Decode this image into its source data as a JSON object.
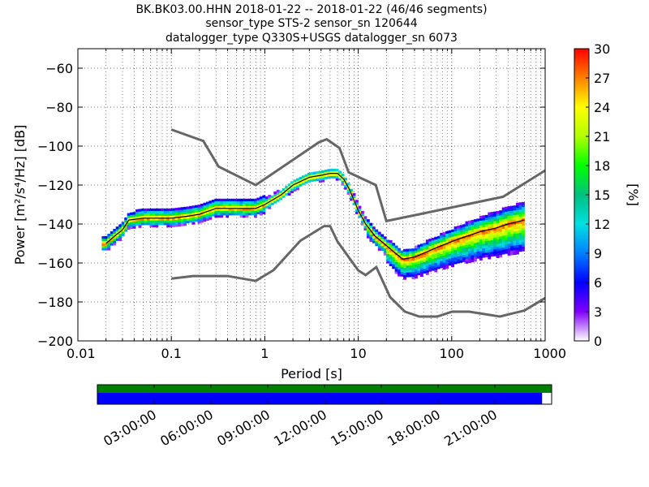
{
  "chart_data": {
    "type": "heatmap",
    "title_lines": [
      "BK.BK03.00.HHN   2018-01-22 -- 2018-01-22  (46/46 segments)",
      "sensor_type STS-2 sensor_sn 120644",
      "datalogger_type Q330S+USGS datalogger_sn 6073"
    ],
    "xlabel": "Period [s]",
    "ylabel": "Power [m²/s⁴/Hz] [dB]",
    "x_scale": "log",
    "xlim": [
      0.01,
      1000
    ],
    "ylim": [
      -200,
      -50
    ],
    "x_ticks": [
      {
        "value": 0.01,
        "label": "0.01"
      },
      {
        "value": 0.1,
        "label": "0.1"
      },
      {
        "value": 1,
        "label": "1"
      },
      {
        "value": 10,
        "label": "10"
      },
      {
        "value": 100,
        "label": "100"
      },
      {
        "value": 1000,
        "label": "1000"
      }
    ],
    "y_ticks": [
      -200,
      -180,
      -160,
      -140,
      -120,
      -100,
      -80,
      -60
    ],
    "grid": true,
    "colorbar": {
      "label": "[%]",
      "range": [
        0,
        30
      ],
      "ticks": [
        0,
        3,
        6,
        9,
        12,
        15,
        18,
        21,
        24,
        27,
        30
      ],
      "colormap": "pqlx"
    },
    "noise_models": [
      {
        "id": "high-noise-model",
        "x": [
          0.1,
          0.22,
          0.32,
          0.8,
          3.8,
          4.6,
          6.3,
          7.9,
          15.4,
          20,
          354.8,
          1000
        ],
        "y": [
          -91.5,
          -97.4,
          -110.5,
          -120.0,
          -98.0,
          -96.5,
          -101.0,
          -113.5,
          -120.0,
          -138.5,
          -126.0,
          -112.5
        ]
      },
      {
        "id": "low-noise-model",
        "x": [
          0.1,
          0.17,
          0.4,
          0.8,
          1.24,
          2.4,
          4.3,
          5.0,
          6.0,
          10.0,
          12.0,
          15.6,
          21.9,
          31.6,
          45,
          70,
          101,
          154,
          328,
          600,
          1000
        ],
        "y": [
          -168.0,
          -166.7,
          -166.7,
          -169.2,
          -163.7,
          -148.6,
          -141.1,
          -141.1,
          -149.0,
          -163.8,
          -166.2,
          -162.1,
          -177.5,
          -185.0,
          -187.5,
          -187.5,
          -185.0,
          -185.0,
          -187.5,
          -184.4,
          -178.0
        ]
      }
    ],
    "mean_curve": {
      "x": [
        0.02,
        0.025,
        0.03,
        0.035,
        0.05,
        0.1,
        0.15,
        0.2,
        0.3,
        0.5,
        0.8,
        1.0,
        1.5,
        2.0,
        3.0,
        4.0,
        5.0,
        6.0,
        7.0,
        8.0,
        10.0,
        12.0,
        15.0,
        20.0,
        25.0,
        30.0,
        40.0,
        50.0,
        70.0,
        100.0,
        150.0,
        200.0,
        300.0,
        400.0,
        600.0
      ],
      "y": [
        -150,
        -146,
        -143,
        -138,
        -137,
        -137,
        -136,
        -135,
        -132,
        -132,
        -132,
        -130,
        -125,
        -120,
        -116,
        -115,
        -114,
        -114,
        -117,
        -122,
        -133,
        -140,
        -146,
        -151,
        -155,
        -158,
        -157,
        -155,
        -152,
        -149,
        -146,
        -144,
        -142,
        -140,
        -138
      ]
    },
    "timeline": {
      "tick_labels": [
        "03:00:00",
        "06:00:00",
        "09:00:00",
        "12:00:00",
        "15:00:00",
        "18:00:00",
        "21:00:00"
      ],
      "tick_hours": [
        3,
        6,
        9,
        12,
        15,
        18,
        21
      ],
      "range_hours": [
        0,
        24
      ],
      "data_coverage_hours": [
        0,
        24
      ],
      "gap_after_hours": 23.5,
      "colors": {
        "coverage": "#008000",
        "segments": "#0000ff",
        "gap": "#ffffff"
      }
    }
  }
}
